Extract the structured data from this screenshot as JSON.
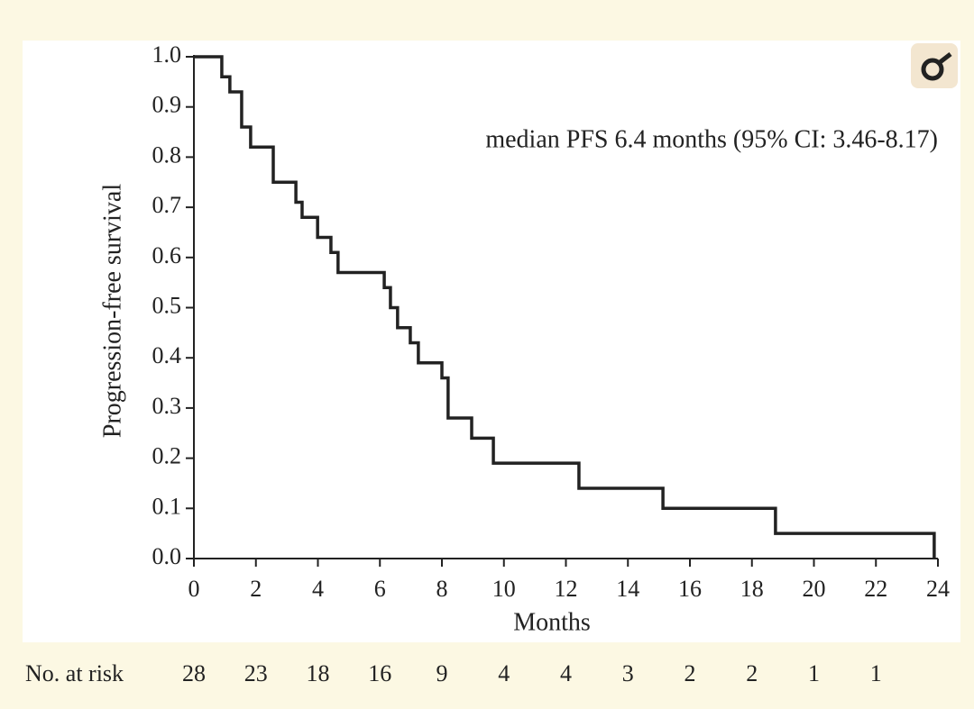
{
  "chart_data": {
    "type": "step",
    "ylabel": "Progression-free survival",
    "xlabel": "Months",
    "annotation": "median PFS 6.4 months (95% CI: 3.46-8.17)",
    "x": [
      0,
      0.9,
      1.16,
      1.54,
      1.83,
      2.56,
      3.29,
      3.49,
      3.99,
      4.42,
      4.65,
      6.14,
      6.34,
      6.57,
      6.98,
      7.24,
      8.0,
      8.2,
      8.96,
      9.66,
      12.42,
      15.13,
      18.76,
      23.88
    ],
    "values": [
      1.0,
      0.96,
      0.93,
      0.86,
      0.82,
      0.75,
      0.71,
      0.68,
      0.64,
      0.61,
      0.57,
      0.54,
      0.5,
      0.46,
      0.43,
      0.39,
      0.36,
      0.28,
      0.24,
      0.19,
      0.14,
      0.1,
      0.05,
      0
    ],
    "color": "#222222",
    "xlim": [
      0,
      24
    ],
    "xticks": [
      0,
      2,
      4,
      6,
      8,
      10,
      12,
      14,
      16,
      18,
      20,
      22,
      24
    ],
    "ylim": [
      0,
      1
    ],
    "yticks": [
      {
        "value": 0,
        "label": "0.0"
      },
      0.1,
      0.2,
      0.3,
      0.4,
      0.5,
      0.6,
      0.7,
      0.8,
      0.9,
      {
        "value": 1,
        "label": "1.0"
      }
    ],
    "risk_table": {
      "label": "No. at risk",
      "values": [
        28,
        23,
        18,
        16,
        9,
        4,
        4,
        3,
        2,
        2,
        1,
        1
      ]
    }
  }
}
